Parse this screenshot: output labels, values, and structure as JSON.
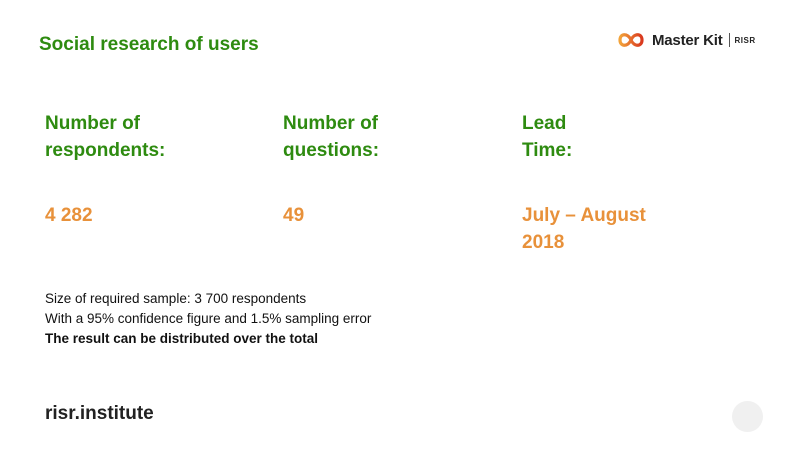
{
  "header": {
    "title": "Social research of users",
    "logo": {
      "name": "Master Kit",
      "sub": "RISR",
      "mark_icon": "infinity-swirl-icon",
      "mark_color": "#e8562a"
    }
  },
  "stats": [
    {
      "label": "Number of\nrespondents:",
      "value": "4 282"
    },
    {
      "label": "Number of\nquestions:",
      "value": "49"
    },
    {
      "label": "Lead\nTime:",
      "value": "July – August\n2018"
    }
  ],
  "notes": {
    "line1": "Size of required sample: 3 700 respondents",
    "line2": "With a 95% confidence figure and 1.5% sampling error",
    "line3": "The result can be distributed over the total"
  },
  "footer": {
    "site": "risr.institute"
  },
  "colors": {
    "green": "#2e8b10",
    "orange": "#e8913a",
    "text": "#111111"
  }
}
